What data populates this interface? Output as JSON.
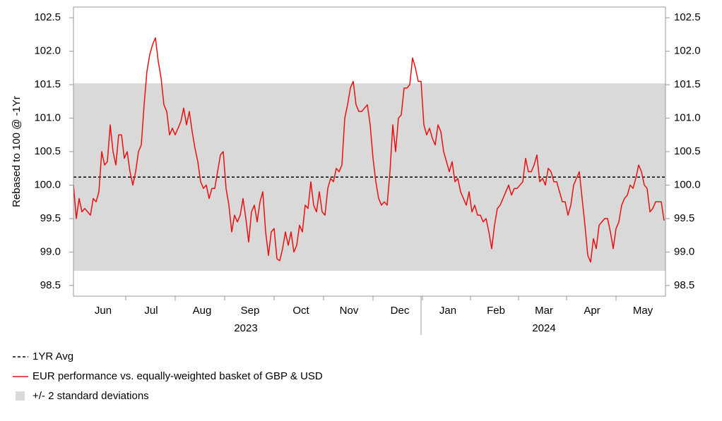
{
  "chart_data": {
    "type": "line",
    "y_label": "Rebased to 100 @ -1Yr",
    "categories": [
      null,
      null,
      null,
      null,
      null,
      null,
      null,
      null,
      null,
      null,
      "Jun",
      null,
      null,
      null,
      null,
      null,
      null,
      null,
      null,
      null,
      null,
      null,
      null,
      null,
      null,
      null,
      null,
      "Jul",
      null,
      null,
      null,
      null,
      null,
      null,
      null,
      null,
      null,
      null,
      null,
      null,
      null,
      null,
      null,
      null,
      null,
      "Aug",
      null,
      null,
      null,
      null,
      null,
      null,
      null,
      null,
      null,
      null,
      null,
      null,
      null,
      null,
      null,
      null,
      "Sep",
      null,
      null,
      null,
      null,
      null,
      null,
      null,
      null,
      null,
      null,
      null,
      null,
      null,
      null,
      null,
      null,
      null,
      "Oct",
      null,
      null,
      null,
      null,
      null,
      null,
      null,
      null,
      null,
      null,
      null,
      null,
      null,
      null,
      null,
      null,
      "Nov",
      null,
      null,
      null,
      null,
      null,
      null,
      null,
      null,
      null,
      null,
      null,
      null,
      null,
      null,
      null,
      null,
      null,
      "Dec",
      null,
      null,
      null,
      null,
      null,
      null,
      null,
      null,
      null,
      null,
      null,
      null,
      null,
      null,
      null,
      null,
      "Jan",
      null,
      null,
      null,
      null,
      null,
      null,
      null,
      null,
      null,
      null,
      null,
      null,
      null,
      null,
      null,
      null,
      "Feb",
      null,
      null,
      null,
      null,
      null,
      null,
      null,
      null,
      null,
      null,
      null,
      null,
      null,
      null,
      null,
      null,
      "Mar",
      null,
      null,
      null,
      null,
      null,
      null,
      null,
      null,
      null,
      null,
      null,
      null,
      null,
      null,
      null,
      null,
      "Apr",
      null,
      null,
      null,
      null,
      null,
      null,
      null,
      null,
      null,
      null,
      null,
      null,
      null,
      null,
      null,
      null,
      null,
      "May",
      null,
      null,
      null,
      null,
      null,
      null,
      null,
      null
    ],
    "years": [
      "2023",
      "2024"
    ],
    "series": [
      {
        "name": "EUR performance vs. equally-weighted basket of GBP & USD",
        "color": "#e8110f",
        "values": [
          100.0,
          99.5,
          99.8,
          99.6,
          99.65,
          99.6,
          99.55,
          99.8,
          99.75,
          99.9,
          100.5,
          100.3,
          100.35,
          100.9,
          100.5,
          100.3,
          100.75,
          100.75,
          100.4,
          100.5,
          100.2,
          100.0,
          100.2,
          100.5,
          100.6,
          101.2,
          101.7,
          101.95,
          102.1,
          102.2,
          101.85,
          101.6,
          101.2,
          101.1,
          100.75,
          100.85,
          100.75,
          100.85,
          100.95,
          101.15,
          100.9,
          101.1,
          100.8,
          100.55,
          100.35,
          100.05,
          99.95,
          100.0,
          99.8,
          99.95,
          99.95,
          100.2,
          100.45,
          100.5,
          99.95,
          99.7,
          99.3,
          99.55,
          99.45,
          99.55,
          99.8,
          99.5,
          99.15,
          99.6,
          99.7,
          99.45,
          99.75,
          99.9,
          99.3,
          98.95,
          99.3,
          99.35,
          98.9,
          98.87,
          99.05,
          99.3,
          99.1,
          99.3,
          99.0,
          99.1,
          99.4,
          99.3,
          99.7,
          99.65,
          100.05,
          99.7,
          99.6,
          99.9,
          99.6,
          99.55,
          99.95,
          100.1,
          100.05,
          100.25,
          100.2,
          100.3,
          101.0,
          101.2,
          101.45,
          101.55,
          101.2,
          101.1,
          101.1,
          101.15,
          101.2,
          100.9,
          100.4,
          100.05,
          99.8,
          99.7,
          99.75,
          99.7,
          100.2,
          100.9,
          100.5,
          101.0,
          101.05,
          101.45,
          101.45,
          101.5,
          101.9,
          101.75,
          101.55,
          101.55,
          100.9,
          100.75,
          100.85,
          100.7,
          100.6,
          100.9,
          100.8,
          100.5,
          100.35,
          100.2,
          100.35,
          100.05,
          100.1,
          99.9,
          99.8,
          99.7,
          99.9,
          99.6,
          99.7,
          99.55,
          99.55,
          99.45,
          99.5,
          99.3,
          99.05,
          99.4,
          99.65,
          99.7,
          99.8,
          99.9,
          100.0,
          99.85,
          99.95,
          99.95,
          100.0,
          100.05,
          100.4,
          100.2,
          100.2,
          100.3,
          100.45,
          100.05,
          100.1,
          100.0,
          100.25,
          100.2,
          100.05,
          100.05,
          99.9,
          99.75,
          99.75,
          99.55,
          99.7,
          100.0,
          100.1,
          100.2,
          99.8,
          99.4,
          98.95,
          98.85,
          99.2,
          99.05,
          99.4,
          99.45,
          99.5,
          99.5,
          99.3,
          99.05,
          99.35,
          99.45,
          99.7,
          99.8,
          99.85,
          100.0,
          99.95,
          100.1,
          100.3,
          100.2,
          100.0,
          99.95,
          99.6,
          99.65,
          99.75,
          99.75,
          99.75,
          99.47
        ]
      }
    ],
    "average": {
      "name": "1YR Avg",
      "value": 100.12,
      "color": "#000000"
    },
    "band": {
      "name": "+/- 2 standard deviations",
      "low": 98.72,
      "high": 101.52,
      "color": "#d9d9d9"
    },
    "ylim": [
      98.34,
      102.66
    ],
    "yticks": [
      98.5,
      {
        "value": 99,
        "label": "99.0"
      },
      99.5,
      {
        "value": 100,
        "label": "100.0"
      },
      100.5,
      {
        "value": 101,
        "label": "101.0"
      },
      101.5,
      {
        "value": 102,
        "label": "102.0"
      },
      102.5
    ],
    "y2lim": [
      98.34,
      102.66
    ],
    "y2ticks": [
      98.5,
      {
        "value": 99,
        "label": "99.0"
      },
      99.5,
      {
        "value": 100,
        "label": "100.0"
      },
      100.5,
      {
        "value": 101,
        "label": "101.0"
      },
      101.5,
      {
        "value": 102,
        "label": "102.0"
      },
      102.5
    ],
    "legend": "bottom-left"
  }
}
